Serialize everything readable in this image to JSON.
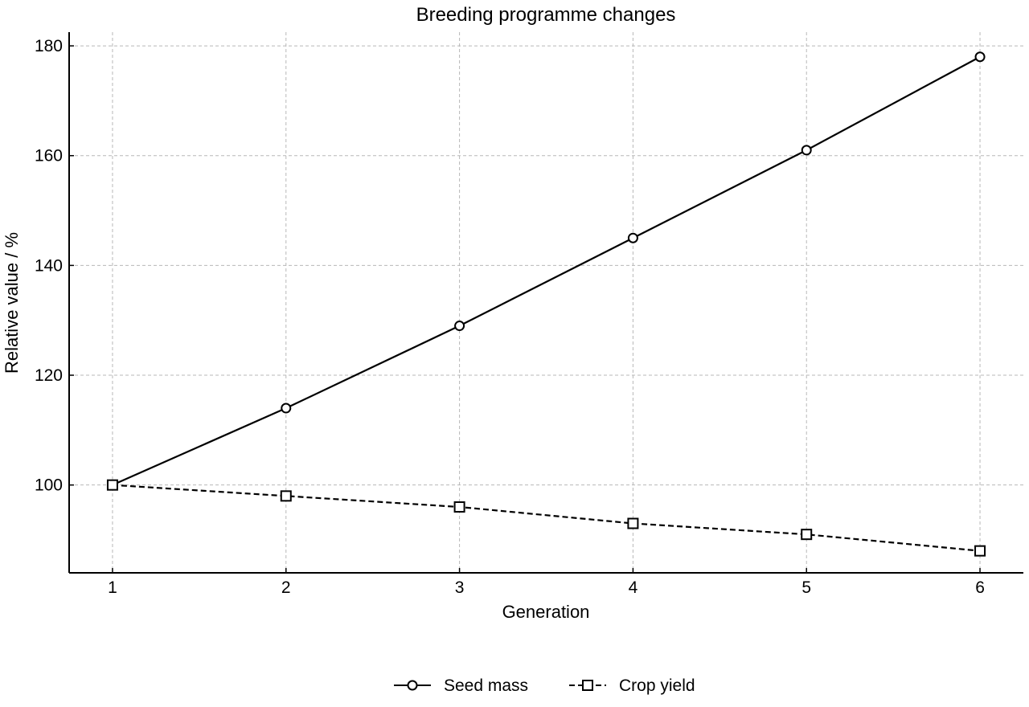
{
  "chart_data": {
    "type": "line",
    "title": "Breeding programme changes",
    "xlabel": "Generation",
    "ylabel": "Relative value / %",
    "x": [
      1,
      2,
      3,
      4,
      5,
      6
    ],
    "x_tick_labels": [
      "1",
      "2",
      "3",
      "4",
      "5",
      "6"
    ],
    "xlim": [
      0.75,
      6.25
    ],
    "ylim": [
      84,
      182.5
    ],
    "y_ticks": [
      100,
      120,
      140,
      160,
      180
    ],
    "y_tick_labels": [
      "100",
      "120",
      "140",
      "160",
      "180"
    ],
    "grid": true,
    "legend_position": "bottom-center",
    "series": [
      {
        "name": "Seed mass",
        "values": [
          100,
          114,
          129,
          145,
          161,
          178
        ],
        "line_style": "solid",
        "marker": "circle",
        "color": "#000000"
      },
      {
        "name": "Crop yield",
        "values": [
          100,
          98,
          96,
          93,
          91,
          88
        ],
        "line_style": "dashed",
        "marker": "square",
        "color": "#000000"
      }
    ]
  }
}
